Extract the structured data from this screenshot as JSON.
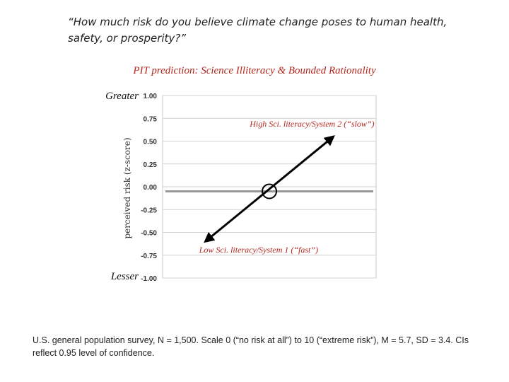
{
  "question": "“How much risk do you believe climate change poses to human health, safety, or prosperity?”",
  "chart_data": {
    "type": "line",
    "title": "PIT prediction: Science Illiteracy & Bounded Rationality",
    "ylabel": "perceived risk (z-score)",
    "y_top_label": "Greater",
    "y_bottom_label": "Lesser",
    "ylim": [
      -1.0,
      1.0
    ],
    "yticks": [
      1.0,
      0.75,
      0.5,
      0.25,
      0.0,
      -0.25,
      -0.5,
      -0.75,
      -1.0
    ],
    "ytick_labels": [
      "1.00",
      "0.75",
      "0.50",
      "0.25",
      "0.00",
      "-0.25",
      "-0.50",
      "-0.75",
      "-1.00"
    ],
    "xlim": [
      0,
      1
    ],
    "grid": true,
    "series": [
      {
        "x": [
          0.2,
          0.5,
          0.8
        ],
        "values": [
          -0.6,
          -0.05,
          0.55
        ],
        "color": "#000000",
        "arrows": "both",
        "midpoint_marker": "circle"
      }
    ],
    "reference_line": {
      "y": -0.05,
      "color": "#999999"
    },
    "annotations": [
      {
        "text": "High Sci. literacy/System 2 (“slow”)",
        "x": 0.7,
        "y": 0.66
      },
      {
        "text": "Low Sci. literacy/System 1 (“fast”)",
        "x": 0.45,
        "y": -0.72
      }
    ]
  },
  "footnote": "U.S. general population survey, N = 1,500. Scale 0 (“no risk at all”) to 10 (“extreme risk”), M = 5.7, SD = 3.4. CIs reflect 0.95 level of confidence."
}
